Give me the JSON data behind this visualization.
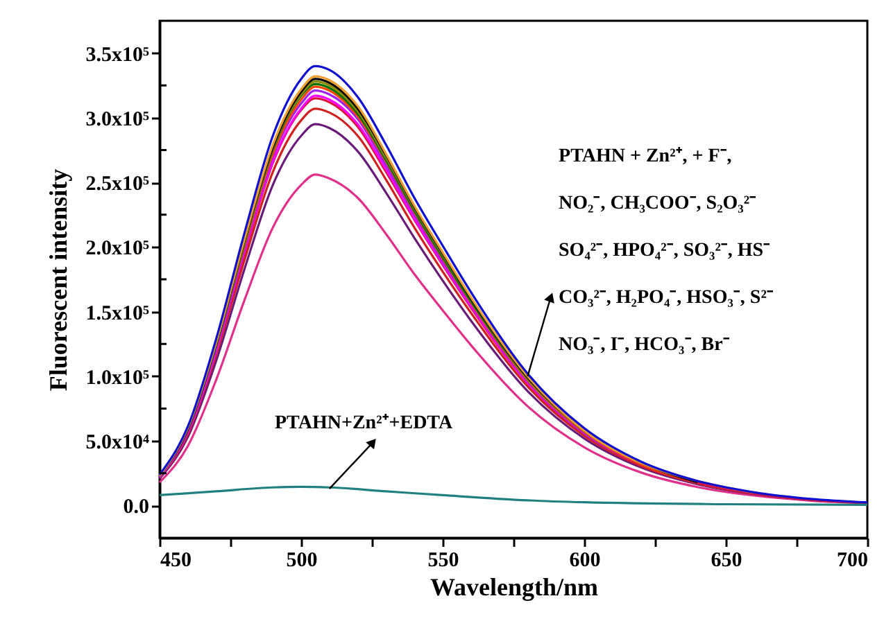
{
  "chart_data": {
    "type": "line",
    "xlabel": "Wavelength/nm",
    "ylabel": "Fluorescent intensity",
    "xlim": [
      450,
      700
    ],
    "ylim": [
      -25000,
      375000
    ],
    "xticks": [
      450,
      {
        "value": 475,
        "label": null
      },
      500,
      {
        "value": 525,
        "label": null
      },
      550,
      {
        "value": 575,
        "label": null
      },
      600,
      {
        "value": 625,
        "label": null
      },
      650,
      {
        "value": 675,
        "label": null
      },
      700
    ],
    "yticks": [
      {
        "value": 0,
        "label": "0.0"
      },
      {
        "value": 25000,
        "label": null
      },
      {
        "value": 50000,
        "label": "5.0x10⁴"
      },
      {
        "value": 75000,
        "label": null
      },
      {
        "value": 100000,
        "label": "1.0x10⁵"
      },
      {
        "value": 125000,
        "label": null
      },
      {
        "value": 150000,
        "label": "1.5x10⁵"
      },
      {
        "value": 175000,
        "label": null
      },
      {
        "value": 200000,
        "label": "2.0x10⁵"
      },
      {
        "value": 225000,
        "label": null
      },
      {
        "value": 250000,
        "label": "2.5x10⁵"
      },
      {
        "value": 275000,
        "label": null
      },
      {
        "value": 300000,
        "label": "3.0x10⁵"
      },
      {
        "value": 325000,
        "label": null
      },
      {
        "value": 350000,
        "label": "3.5x10⁵"
      }
    ],
    "x": [
      450,
      460,
      470,
      480,
      490,
      500,
      505,
      510,
      520,
      530,
      540,
      550,
      560,
      580,
      600,
      620,
      640,
      660,
      680,
      700
    ],
    "grid": false,
    "marker": "none",
    "line_style": "solid",
    "series": [
      {
        "color": "#e0308a",
        "values": [
          17900.0,
          46100.0,
          97300.0,
          159000.0,
          215000.0,
          248000.0,
          256000.0,
          253000.0,
          238000.0,
          210000.0,
          179000.0,
          151000.0,
          124000.0,
          76800.0,
          45100.0,
          25600.0,
          14300.0,
          7700.0,
          3800.0,
          1800.0
        ]
      },
      {
        "color": "#6a1b7a",
        "values": [
          20700.0,
          53100.0,
          112000.0,
          183000.0,
          248000.0,
          286000.0,
          295000.0,
          292000.0,
          274000.0,
          242000.0,
          207000.0,
          174000.0,
          143000.0,
          88500.0,
          51900.0,
          29500.0,
          16500.0,
          8900.0,
          4400.0,
          2100.0
        ]
      },
      {
        "color": "#d02020",
        "values": [
          21500.0,
          55300.0,
          117000.0,
          190000.0,
          258000.0,
          298000.0,
          307000.0,
          304000.0,
          286000.0,
          252000.0,
          215000.0,
          181000.0,
          149000.0,
          92100.0,
          54000.0,
          30700.0,
          17200.0,
          9200.0,
          4600.0,
          2100.0
        ]
      },
      {
        "color": "#dc143c",
        "values": [
          22100.0,
          56700.0,
          120000.0,
          195000.0,
          265000.0,
          306000.0,
          315000.0,
          312000.0,
          293000.0,
          258000.0,
          221000.0,
          186000.0,
          153000.0,
          94500.0,
          55400.0,
          31500.0,
          17600.0,
          9500.0,
          4700.0,
          2200.0
        ]
      },
      {
        "color": "#ff00ff",
        "values": [
          22000,
          57000,
          120000,
          197000,
          266000,
          307000,
          317000,
          314000,
          295000,
          260000,
          222000,
          187000,
          154000,
          95000,
          56000,
          32000,
          18000,
          null,
          null,
          null
        ]
      },
      {
        "color": "#a020f0",
        "values": [
          22000,
          58000,
          122000,
          199000,
          270000,
          311000,
          321000,
          318000,
          299000,
          263000,
          225000,
          189000,
          156000,
          96000,
          56000,
          32000,
          null,
          null,
          null,
          null
        ]
      },
      {
        "color": "#ff4500",
        "values": [
          null,
          null,
          123000,
          201000,
          272000,
          314000,
          324000,
          321000,
          301000,
          266000,
          227000,
          191000,
          157000,
          97000,
          57000,
          32000,
          18000,
          null,
          null,
          null
        ]
      },
      {
        "color": "#007000",
        "values": [
          23000,
          59000,
          124000,
          203000,
          275000,
          317000,
          326000,
          323000,
          303000,
          267000,
          228000,
          192000,
          158000,
          98000,
          58000,
          33000,
          null,
          null,
          null,
          null
        ]
      },
      {
        "color": "#8b8b00",
        "values": [
          23000,
          59000,
          125000,
          204000,
          276000,
          318000,
          328000,
          325000,
          305000,
          269000,
          230000,
          194000,
          160000,
          98000,
          58000,
          33000,
          null,
          null,
          null,
          null
        ]
      },
      {
        "color": "#000000",
        "values": [
          23000,
          59000,
          125000,
          205000,
          277000,
          320000,
          330000,
          327000,
          307000,
          271000,
          231000,
          195000,
          160000,
          99000,
          58000,
          33000,
          18000,
          null,
          null,
          null
        ]
      },
      {
        "color": "#f0a030",
        "values": [
          23000,
          60000,
          126000,
          206000,
          279000,
          322000,
          332000,
          329000,
          309000,
          272000,
          232000,
          196000,
          161000,
          100000,
          58000,
          33000,
          19000,
          10000,
          null,
          null
        ]
      },
      {
        "color": "#1010d0",
        "values": [
          23800.0,
          61200.0,
          129000.0,
          211000.0,
          286000.0,
          330000.0,
          340000.0,
          337000.0,
          316000.0,
          279000.0,
          238000.0,
          201000.0,
          165000.0,
          102000.0,
          59800.0,
          34000.0,
          19000.0,
          10200.0,
          5100.0,
          2400.0
        ]
      },
      {
        "color": "#208080",
        "x": [
          450,
          470,
          490,
          500,
          510,
          530,
          550,
          580,
          600,
          650,
          700
        ],
        "values": [
          8000,
          11000,
          14000,
          14500,
          14000,
          11000,
          8000,
          4000,
          2500,
          1000,
          500
        ]
      }
    ],
    "annotations": [
      "PTAHN + Zn²⁺, + F⁻,",
      "NO₂⁻, CH₃COO⁻, S₂O₃²⁻",
      "SO₄²⁻, HPO₄²⁻, SO₃²⁻, HS⁻",
      {
        "text": "CO₃²⁻, H₂PO₄⁻, HSO₃⁻, S²⁻",
        "x": 580,
        "y": 100000
      },
      "NO₃⁻, I⁻, HCO₃⁻, Br⁻",
      {
        "text": "PTAHN+Zn²⁺+EDTA",
        "x": 510,
        "y": 13000
      }
    ]
  }
}
